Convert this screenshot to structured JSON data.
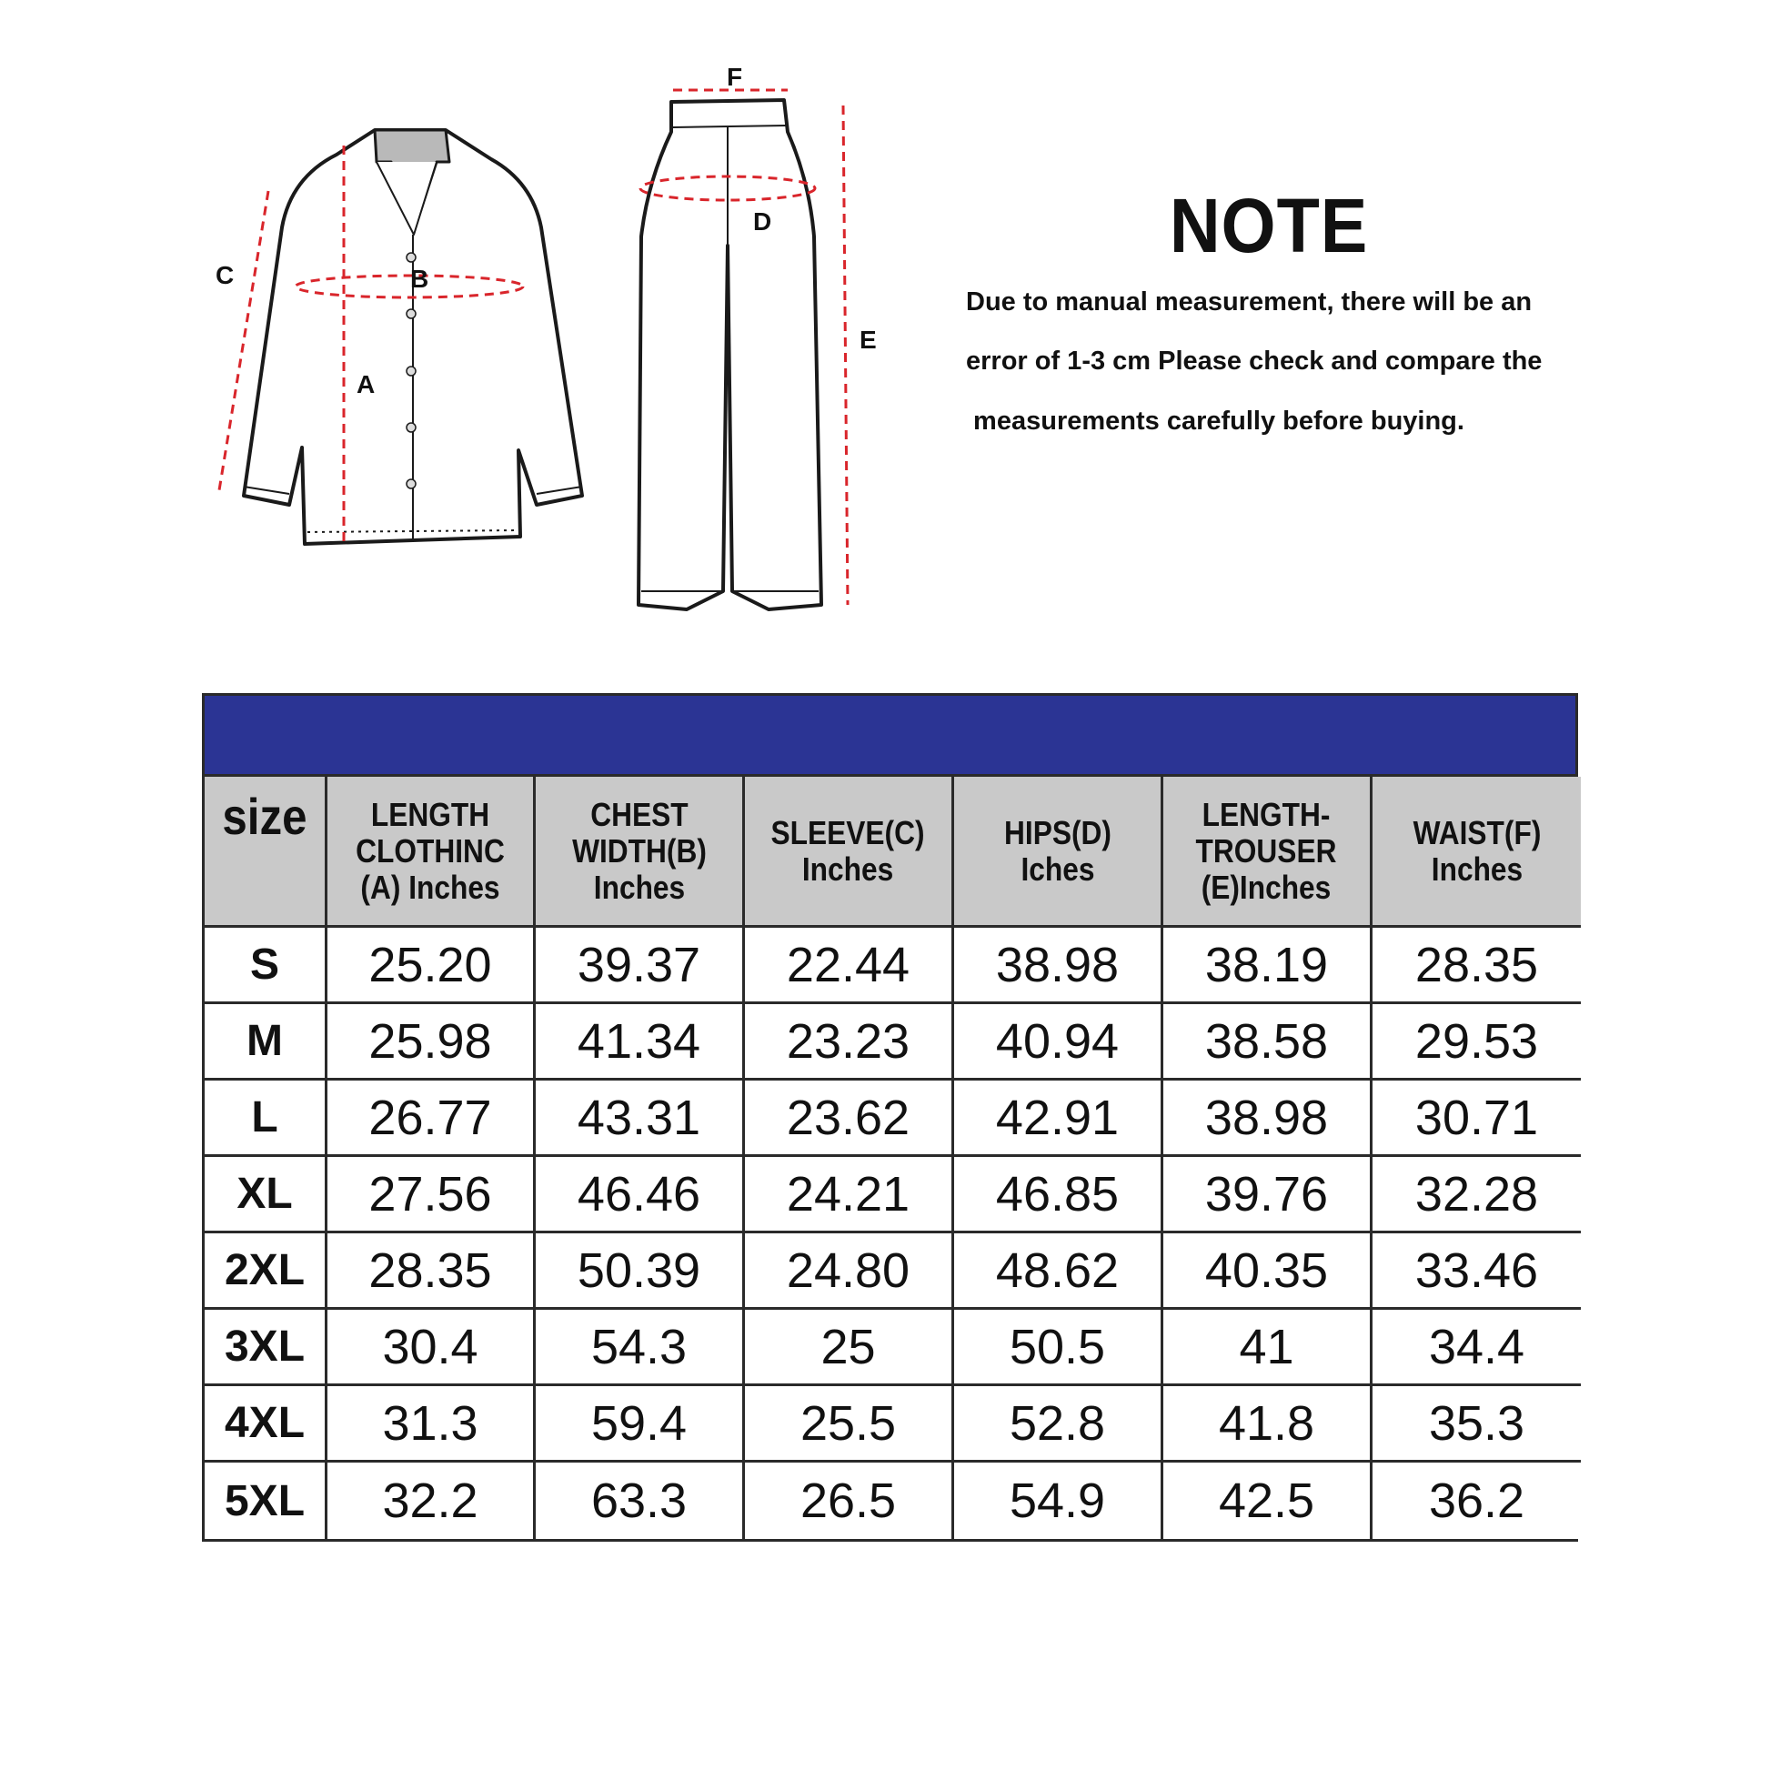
{
  "diagram": {
    "labels": {
      "a": "A",
      "b": "B",
      "c": "C",
      "d": "D",
      "e": "E",
      "f": "F"
    },
    "colors": {
      "measure_line": "#d9252b",
      "collar": "#b9b9b9",
      "outline": "#1a1a1a"
    }
  },
  "note": {
    "title": "NOTE",
    "lines": [
      "Due to manual measurement, there will be an",
      "error of 1-3 cm Please check and compare the",
      " measurements carefully before buying."
    ]
  },
  "table": {
    "band_color": "#2b3494",
    "header_color": "#c9c9c9",
    "headers": [
      "size",
      "LENGTH\nCLOTHINC\n(A) Inches",
      "CHEST\nWIDTH(B)\nInches",
      "SLEEVE(C)\nInches",
      "HIPS(D)\nIches",
      "LENGTH-\nTROUSER\n(E)Inches",
      "WAIST(F)\nInches"
    ],
    "rows": [
      [
        "S",
        "25.20",
        "39.37",
        "22.44",
        "38.98",
        "38.19",
        "28.35"
      ],
      [
        "M",
        "25.98",
        "41.34",
        "23.23",
        "40.94",
        "38.58",
        "29.53"
      ],
      [
        "L",
        "26.77",
        "43.31",
        "23.62",
        "42.91",
        "38.98",
        "30.71"
      ],
      [
        "XL",
        "27.56",
        "46.46",
        "24.21",
        "46.85",
        "39.76",
        "32.28"
      ],
      [
        "2XL",
        "28.35",
        "50.39",
        "24.80",
        "48.62",
        "40.35",
        "33.46"
      ],
      [
        "3XL",
        "30.4",
        "54.3",
        "25",
        "50.5",
        "41",
        "34.4"
      ],
      [
        "4XL",
        "31.3",
        "59.4",
        "25.5",
        "52.8",
        "41.8",
        "35.3"
      ],
      [
        "5XL",
        "32.2",
        "63.3",
        "26.5",
        "54.9",
        "42.5",
        "36.2"
      ]
    ]
  }
}
